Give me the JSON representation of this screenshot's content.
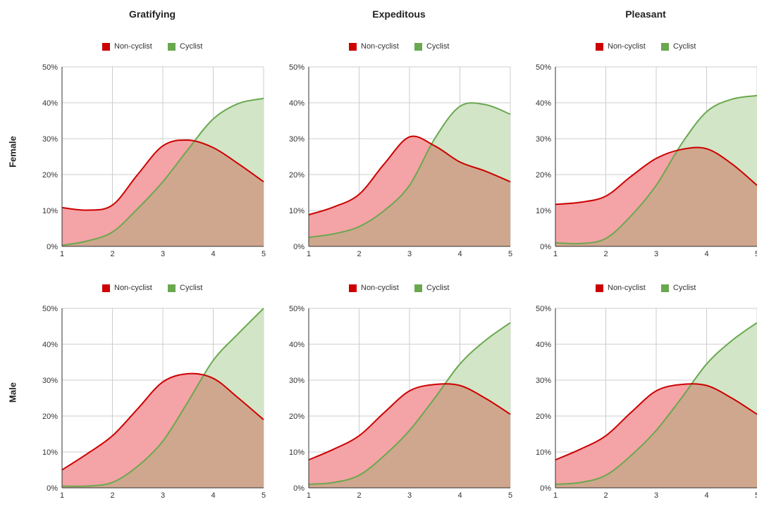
{
  "colors": {
    "noncyclist_line": "#cc0000",
    "noncyclist_fill": "#f4a3a6",
    "cyclist_line": "#6aa84f",
    "cyclist_fill": "#d2e5c7",
    "overlap_fill": "#cfa78e",
    "grid": "#cccccc",
    "axis": "#333333"
  },
  "column_titles": [
    "Gratifying",
    "Expeditous",
    "Pleasant"
  ],
  "row_labels": [
    "Female",
    "Male"
  ],
  "legend": {
    "noncyclist": "Non-cyclist",
    "cyclist": "Cyclist"
  },
  "chart_data": [
    {
      "type": "area",
      "row": "Female",
      "column": "Gratifying",
      "x": [
        1,
        1.5,
        2,
        2.5,
        3,
        3.5,
        4,
        4.5,
        5
      ],
      "ylim": [
        0,
        50
      ],
      "yticks": [
        "0%",
        "10%",
        "20%",
        "30%",
        "40%",
        "50%"
      ],
      "xticks": [
        "1",
        "2",
        "3",
        "4",
        "5"
      ],
      "legend_position": "top",
      "series": [
        {
          "name": "Non-cyclist",
          "values": [
            10.8,
            10.1,
            11.5,
            20,
            28,
            29.6,
            27.5,
            23,
            18
          ]
        },
        {
          "name": "Cyclist",
          "values": [
            0.3,
            1.5,
            4,
            10.5,
            18,
            27,
            35.5,
            39.8,
            41.2
          ]
        }
      ]
    },
    {
      "type": "area",
      "row": "Female",
      "column": "Expeditous",
      "x": [
        1,
        1.5,
        2,
        2.5,
        3,
        3.5,
        4,
        4.5,
        5
      ],
      "ylim": [
        0,
        50
      ],
      "yticks": [
        "0%",
        "10%",
        "20%",
        "30%",
        "40%",
        "50%"
      ],
      "xticks": [
        "1",
        "2",
        "3",
        "4",
        "5"
      ],
      "legend_position": "top",
      "series": [
        {
          "name": "Non-cyclist",
          "values": [
            8.8,
            11,
            14.5,
            23,
            30.5,
            28,
            23.5,
            21,
            18
          ]
        },
        {
          "name": "Cyclist",
          "values": [
            2.5,
            3.5,
            5.5,
            10,
            17,
            30,
            39,
            39.5,
            36.8
          ]
        }
      ]
    },
    {
      "type": "area",
      "row": "Female",
      "column": "Pleasant",
      "x": [
        1,
        1.5,
        2,
        2.5,
        3,
        3.5,
        4,
        4.5,
        5
      ],
      "ylim": [
        0,
        50
      ],
      "yticks": [
        "0%",
        "10%",
        "20%",
        "30%",
        "40%",
        "50%"
      ],
      "xticks": [
        "1",
        "2",
        "3",
        "4",
        "5"
      ],
      "legend_position": "top",
      "series": [
        {
          "name": "Non-cyclist",
          "values": [
            11.7,
            12.3,
            14,
            19.5,
            24.5,
            27,
            27.2,
            23,
            17
          ]
        },
        {
          "name": "Cyclist",
          "values": [
            1,
            0.8,
            2.2,
            8.5,
            17,
            28.5,
            37.5,
            41,
            42
          ]
        }
      ]
    },
    {
      "type": "area",
      "row": "Male",
      "column": "Gratifying",
      "x": [
        1,
        1.5,
        2,
        2.5,
        3,
        3.5,
        4,
        4.5,
        5
      ],
      "ylim": [
        0,
        50
      ],
      "yticks": [
        "0%",
        "10%",
        "20%",
        "30%",
        "40%",
        "50%"
      ],
      "xticks": [
        "1",
        "2",
        "3",
        "4",
        "5"
      ],
      "legend_position": "top",
      "series": [
        {
          "name": "Non-cyclist",
          "values": [
            5,
            9.5,
            14.5,
            22,
            29.5,
            31.8,
            30.5,
            25,
            19
          ]
        },
        {
          "name": "Cyclist",
          "values": [
            0.5,
            0.5,
            1.5,
            6,
            13,
            24,
            35.5,
            43,
            50
          ]
        }
      ]
    },
    {
      "type": "area",
      "row": "Male",
      "column": "Expeditous",
      "x": [
        1,
        1.5,
        2,
        2.5,
        3,
        3.5,
        4,
        4.5,
        5
      ],
      "ylim": [
        0,
        50
      ],
      "yticks": [
        "0%",
        "10%",
        "20%",
        "30%",
        "40%",
        "50%"
      ],
      "xticks": [
        "1",
        "2",
        "3",
        "4",
        "5"
      ],
      "legend_position": "top",
      "series": [
        {
          "name": "Non-cyclist",
          "values": [
            7.8,
            10.8,
            14.5,
            21,
            27,
            28.8,
            28.5,
            25,
            20.5
          ]
        },
        {
          "name": "Cyclist",
          "values": [
            1,
            1.5,
            3.5,
            9,
            16,
            25,
            34.5,
            41,
            46
          ]
        }
      ]
    },
    {
      "type": "area",
      "row": "Male",
      "column": "Pleasant",
      "x": [
        1,
        1.5,
        2,
        2.5,
        3,
        3.5,
        4,
        4.5,
        5
      ],
      "ylim": [
        0,
        50
      ],
      "yticks": [
        "0%",
        "10%",
        "20%",
        "30%",
        "40%",
        "50%"
      ],
      "xticks": [
        "1",
        "2",
        "3",
        "4",
        "5"
      ],
      "legend_position": "top",
      "series": [
        {
          "name": "Non-cyclist",
          "values": [
            7.8,
            10.8,
            14.5,
            21,
            27,
            28.8,
            28.5,
            25,
            20.5
          ]
        },
        {
          "name": "Cyclist",
          "values": [
            1,
            1.5,
            3.5,
            9,
            16,
            25,
            34.5,
            41,
            46
          ]
        }
      ]
    }
  ]
}
